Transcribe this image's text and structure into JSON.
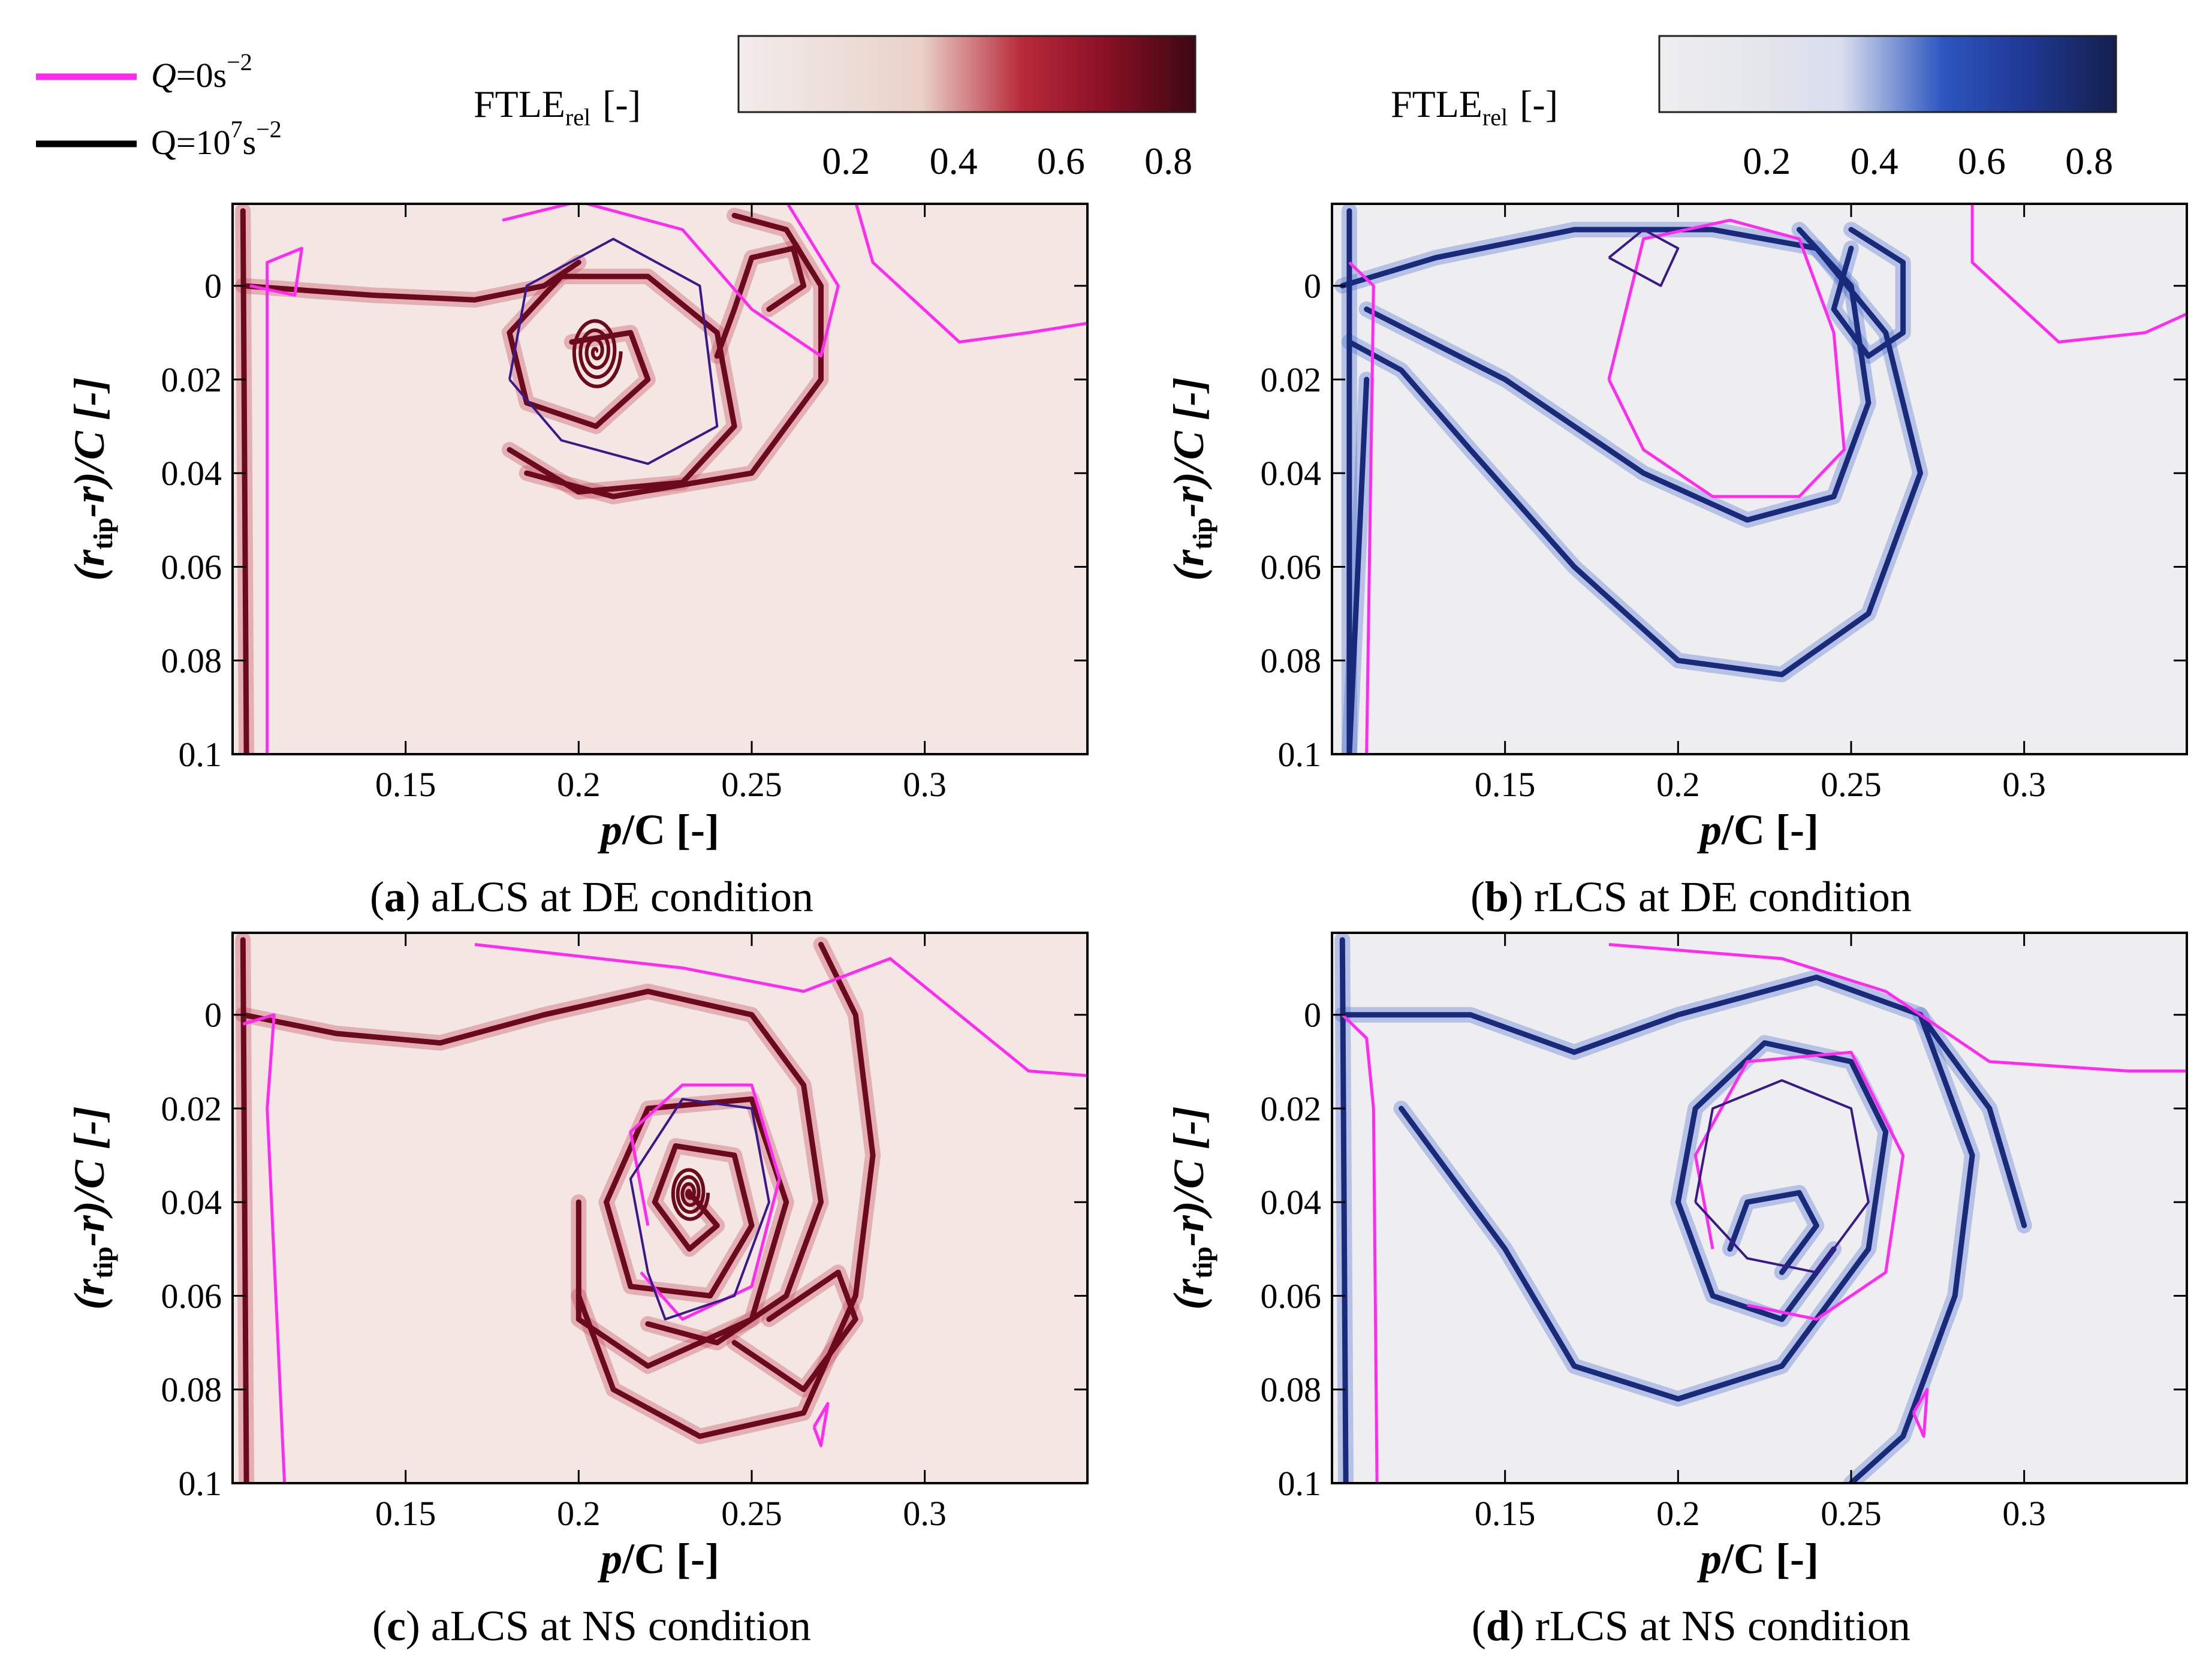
{
  "legend": {
    "q0_prefix": "Q",
    "q0_rest": "=0s",
    "q0_exp": "−2",
    "q1_prefix": "Q=10",
    "q1_exp7": "7",
    "q1_unit": "s",
    "q1_exp": "−2",
    "q0_color": "#ff2bf0",
    "q1_color": "#000000"
  },
  "colorbars": [
    {
      "label_main": "FTLE",
      "label_sub": "rel",
      "label_unit": "[-]",
      "ticks": [
        "0.2",
        "0.4",
        "0.6",
        "0.8"
      ],
      "range": [
        0.0,
        0.85
      ],
      "stops": [
        "#f2eceb",
        "#ecdcd6",
        "#ead1c8",
        "#b82a3a",
        "#8b1025",
        "#3e0712"
      ]
    },
    {
      "label_main": "FTLE",
      "label_sub": "rel",
      "label_unit": "[-]",
      "ticks": [
        "0.2",
        "0.4",
        "0.6",
        "0.8"
      ],
      "range": [
        0.0,
        0.85
      ],
      "stops": [
        "#eeeeef",
        "#e3e5ec",
        "#d8ddee",
        "#2d56c0",
        "#1f3894",
        "#15204e"
      ]
    }
  ],
  "axes": {
    "xlabel_p": "p",
    "xlabel_rest": "/C [-]",
    "ylabel_open": "(r",
    "ylabel_sub": "tip",
    "ylabel_rest": "-r)/C [-]",
    "x_ticks": [
      "0.15",
      "0.2",
      "0.25",
      "0.3"
    ],
    "x_tick_values": [
      0.15,
      0.2,
      0.25,
      0.3
    ],
    "xlim": [
      0.1,
      0.347
    ],
    "y_ticks": [
      "0",
      "0.02",
      "0.04",
      "0.06",
      "0.08",
      "0.1"
    ],
    "y_tick_values": [
      0,
      0.02,
      0.04,
      0.06,
      0.08,
      0.1
    ],
    "ylim": [
      -0.0175,
      0.1
    ]
  },
  "panels": [
    {
      "letter": "a",
      "caption": "aLCS at DE condition",
      "fill": "#f3e6e3",
      "line": "#6a0a1c",
      "glow": "#c7485c"
    },
    {
      "letter": "b",
      "caption": "rLCS at DE condition",
      "fill": "#eeeef0",
      "line": "#1a2a7a",
      "glow": "#4a6fd2"
    },
    {
      "letter": "c",
      "caption": "aLCS at NS condition",
      "fill": "#f3e6e3",
      "line": "#6a0a1c",
      "glow": "#c7485c"
    },
    {
      "letter": "d",
      "caption": "rLCS at NS condition",
      "fill": "#eeeef0",
      "line": "#1a2a7a",
      "glow": "#4a6fd2"
    }
  ],
  "contour_colors": {
    "q_zero": "#ff2bf0",
    "q_high": "#3a1a8a"
  }
}
